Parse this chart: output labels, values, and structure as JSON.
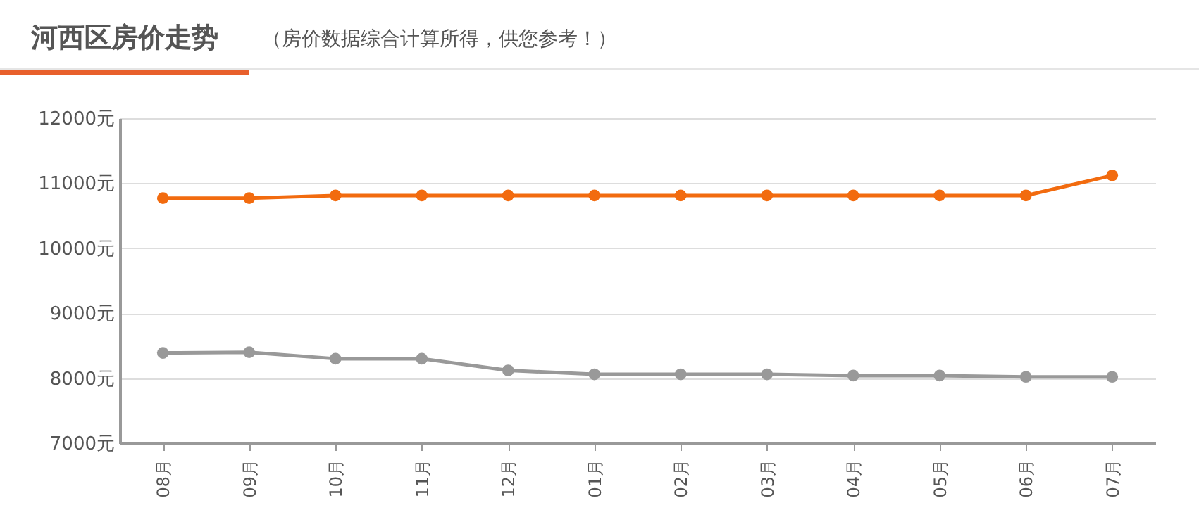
{
  "chart_data": {
    "type": "line",
    "title": "河西区房价走势",
    "subtitle": "（房价数据综合计算所得，供您参考！）",
    "categories": [
      "08月",
      "09月",
      "10月",
      "11月",
      "12月",
      "01月",
      "02月",
      "03月",
      "04月",
      "05月",
      "06月",
      "07月"
    ],
    "series": [
      {
        "color": "#f26b0f",
        "values": [
          10770,
          10770,
          10810,
          10810,
          10810,
          10810,
          10810,
          10810,
          10810,
          10810,
          10810,
          11120
        ]
      },
      {
        "color": "#999999",
        "values": [
          8390,
          8400,
          8300,
          8300,
          8120,
          8060,
          8060,
          8060,
          8040,
          8040,
          8020,
          8020
        ]
      }
    ],
    "ylim": [
      7000,
      12000
    ],
    "yticks": [
      {
        "value": 7000,
        "label": "7000元"
      },
      {
        "value": 8000,
        "label": "8000元"
      },
      {
        "value": 9000,
        "label": "9000元"
      },
      {
        "value": 10000,
        "label": "10000元"
      },
      {
        "value": 11000,
        "label": "11000元"
      },
      {
        "value": 12000,
        "label": "12000元"
      }
    ],
    "grid": "y",
    "legend": false,
    "marker": "circle",
    "line_style": "solid"
  }
}
